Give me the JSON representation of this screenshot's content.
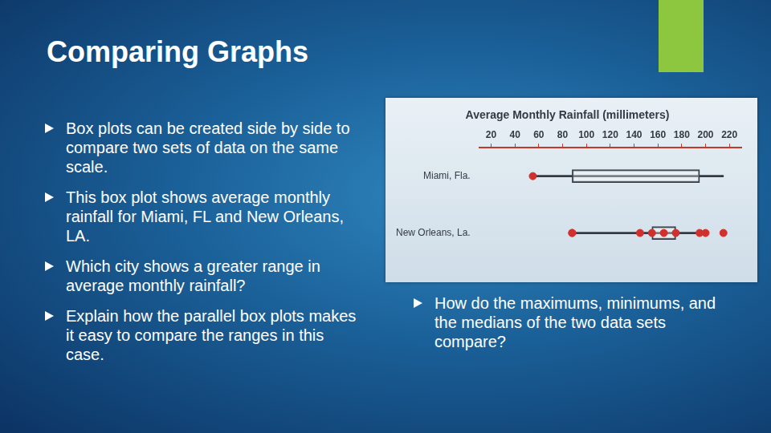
{
  "slide": {
    "title": "Comparing Graphs",
    "bullets": [
      "Box plots can be created side by side to compare two sets of data on the same scale.",
      "This box plot shows average monthly rainfall for Miami, FL and New Orleans, LA.",
      "Which city shows a greater range in average monthly rainfall?",
      "Explain how the parallel box plots makes it easy to compare the ranges in this case."
    ],
    "side_bullets": [
      "How do the maximums, minimums, and the medians of the two data sets compare?"
    ]
  },
  "chart_data": {
    "type": "boxplot",
    "title": "Average Monthly Rainfall (millimeters)",
    "orientation": "horizontal",
    "categories": [
      "Miami, Fla.",
      "New Orleans, La."
    ],
    "min": [
      55,
      88
    ],
    "q1": [
      88,
      155
    ],
    "median": [
      145,
      165
    ],
    "q3": [
      195,
      175
    ],
    "max": [
      215,
      200
    ],
    "color": "#d0312d",
    "xlim": [
      10,
      230
    ],
    "xticks": [
      20,
      40,
      60,
      80,
      100,
      120,
      140,
      160,
      180,
      200,
      220
    ],
    "grid": false
  }
}
